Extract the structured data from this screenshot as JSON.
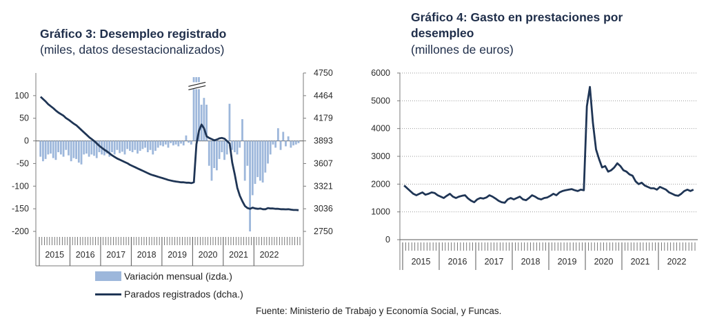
{
  "charts": {
    "left": {
      "title": "Gráfico 3: Desempleo registrado",
      "subtitle": "(miles, datos desestacionalizados)",
      "legend": {
        "bars_label": "Variación mensual (izda.)",
        "line_label": "Parados registrados (dcha.)"
      }
    },
    "right": {
      "title_line1": "Gráfico 4: Gasto en prestaciones por",
      "title_line2": "desempleo",
      "subtitle": "(millones de euros)"
    }
  },
  "source": "Fuente: Ministerio de Trabajo y Economía Social, y Funcas.",
  "colors": {
    "bars": "#9db7db",
    "line": "#1f3555",
    "axis": "#7a7a7a",
    "grid": "#9a9a9a"
  },
  "chart_data": [
    {
      "type": "bar+line",
      "title": "Gráfico 3: Desempleo registrado",
      "subtitle": "(miles, datos desestacionalizados)",
      "x_tick_labels": [
        "2015",
        "2016",
        "2017",
        "2018",
        "2019",
        "2020",
        "2021",
        "2022"
      ],
      "y_left_ticks": [
        100,
        50,
        0,
        -50,
        -100,
        -150,
        -200
      ],
      "y_left_range": [
        -200,
        150
      ],
      "y_right_ticks": [
        2750,
        3036,
        3321,
        3607,
        3893,
        4179,
        4464,
        4750
      ],
      "y_right_range": [
        2750,
        4750
      ],
      "series": [
        {
          "name": "Variación mensual (izda.)",
          "axis": "left",
          "values": [
            -35,
            -45,
            -40,
            -30,
            -28,
            -38,
            -42,
            -25,
            -30,
            -35,
            -20,
            -32,
            -45,
            -38,
            -40,
            -48,
            -52,
            -30,
            -28,
            -35,
            -30,
            -33,
            -38,
            -25,
            -30,
            -32,
            -28,
            -35,
            -25,
            -30,
            -20,
            -27,
            -24,
            -30,
            -18,
            -22,
            -25,
            -20,
            -28,
            -22,
            -18,
            -15,
            -25,
            -20,
            -30,
            -22,
            -15,
            -10,
            -12,
            -8,
            -15,
            -5,
            -10,
            -8,
            -12,
            -6,
            -10,
            12,
            -4,
            -8,
            160,
            155,
            145,
            80,
            95,
            80,
            -55,
            -88,
            -60,
            -65,
            -40,
            -25,
            -42,
            -30,
            82,
            -20,
            -25,
            -30,
            -15,
            48,
            -88,
            -55,
            -200,
            -120,
            -95,
            -80,
            -88,
            -92,
            -70,
            -50,
            -30,
            -8,
            -15,
            28,
            -20,
            20,
            -12,
            10,
            -15,
            -10,
            -8,
            -5
          ],
          "note": "first 2020 bars exceed axis (axis break drawn)"
        },
        {
          "name": "Parados registrados (dcha.)",
          "axis": "right",
          "values": [
            4450,
            4420,
            4390,
            4355,
            4330,
            4305,
            4275,
            4250,
            4230,
            4210,
            4180,
            4160,
            4135,
            4110,
            4090,
            4060,
            4030,
            4000,
            3970,
            3940,
            3915,
            3890,
            3860,
            3830,
            3805,
            3780,
            3760,
            3735,
            3710,
            3690,
            3670,
            3655,
            3640,
            3625,
            3610,
            3590,
            3575,
            3560,
            3545,
            3530,
            3515,
            3500,
            3485,
            3470,
            3460,
            3450,
            3440,
            3430,
            3420,
            3410,
            3400,
            3392,
            3385,
            3380,
            3375,
            3370,
            3370,
            3365,
            3365,
            3360,
            3370,
            3850,
            4020,
            4100,
            4050,
            3950,
            3930,
            3915,
            3900,
            3910,
            3925,
            3930,
            3920,
            3890,
            3860,
            3620,
            3470,
            3300,
            3200,
            3130,
            3070,
            3045,
            3035,
            3050,
            3040,
            3035,
            3040,
            3030,
            3030,
            3045,
            3040,
            3040,
            3035,
            3035,
            3030,
            3030,
            3028,
            3030,
            3025,
            3020,
            3020,
            3018
          ]
        }
      ]
    },
    {
      "type": "line",
      "title": "Gráfico 4: Gasto en prestaciones por desempleo",
      "subtitle": "(millones de euros)",
      "x_tick_labels": [
        "2015",
        "2016",
        "2017",
        "2018",
        "2019",
        "2020",
        "2021",
        "2022"
      ],
      "y_ticks": [
        0,
        1000,
        2000,
        3000,
        4000,
        5000,
        6000
      ],
      "y_range": [
        0,
        6000
      ],
      "series": [
        {
          "values": [
            1950,
            1850,
            1750,
            1650,
            1600,
            1650,
            1700,
            1620,
            1650,
            1700,
            1680,
            1600,
            1550,
            1500,
            1580,
            1650,
            1550,
            1500,
            1550,
            1580,
            1600,
            1480,
            1400,
            1350,
            1450,
            1500,
            1480,
            1520,
            1600,
            1550,
            1480,
            1400,
            1350,
            1330,
            1450,
            1500,
            1450,
            1500,
            1550,
            1450,
            1420,
            1500,
            1600,
            1550,
            1480,
            1450,
            1500,
            1520,
            1580,
            1650,
            1600,
            1700,
            1750,
            1780,
            1800,
            1820,
            1780,
            1750,
            1800,
            1780,
            4800,
            5500,
            4200,
            3250,
            2900,
            2600,
            2650,
            2450,
            2500,
            2600,
            2750,
            2650,
            2500,
            2450,
            2350,
            2300,
            2100,
            2000,
            2050,
            1950,
            1900,
            1850,
            1850,
            1800,
            1900,
            1850,
            1800,
            1700,
            1650,
            1600,
            1580,
            1650,
            1750,
            1800,
            1750,
            1800
          ]
        }
      ]
    }
  ]
}
